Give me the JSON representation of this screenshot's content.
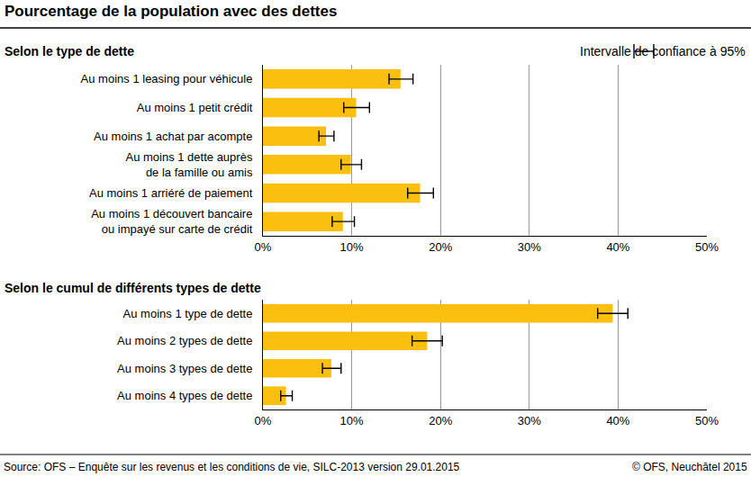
{
  "title": "Pourcentage de la population avec des dettes",
  "legend_label": "Intervalle de confiance à 95%",
  "source": "Source: OFS – Enquête sur les revenus et les conditions de vie, SILC-2013 version 29.01.2015",
  "copyright": "© OFS, Neuchâtel 2015",
  "chart_data": [
    {
      "type": "bar",
      "title": "Selon le type de dette",
      "orientation": "horizontal",
      "grid": true,
      "color": "#fbbf0f",
      "categories": [
        "Au moins 1 leasing pour véhicule",
        "Au moins 1 petit crédit",
        "Au moins 1 achat par acompte",
        "Au moins 1 dette auprès\nde la famille ou amis",
        "Au moins 1 arriéré de paiement",
        "Au moins 1 découvert bancaire\nou impayé sur carte de crédit"
      ],
      "values": [
        15.5,
        10.5,
        7.1,
        9.9,
        17.7,
        9.0
      ],
      "error_minus": [
        1.3,
        1.4,
        0.8,
        1.1,
        1.4,
        1.2
      ],
      "error_plus": [
        1.4,
        1.5,
        0.9,
        1.2,
        1.5,
        1.3
      ],
      "xlim": [
        0,
        50
      ],
      "xticks": [
        {
          "value": 0,
          "label": "0%"
        },
        {
          "value": 10,
          "label": "10%"
        },
        {
          "value": 20,
          "label": "20%"
        },
        {
          "value": 30,
          "label": "30%"
        },
        {
          "value": 40,
          "label": "40%"
        },
        {
          "value": 50,
          "label": "50%"
        }
      ]
    },
    {
      "type": "bar",
      "title": "Selon le cumul de différents types de dette",
      "orientation": "horizontal",
      "grid": true,
      "color": "#fbbf0f",
      "categories": [
        "Au moins 1 type de dette",
        "Au moins 2 types de dette",
        "Au moins 3 types de dette",
        "Au moins 4 types de dette"
      ],
      "values": [
        39.4,
        18.5,
        7.7,
        2.6
      ],
      "error_minus": [
        1.7,
        1.7,
        1.0,
        0.6
      ],
      "error_plus": [
        1.7,
        1.7,
        1.1,
        0.7
      ],
      "xlim": [
        0,
        50
      ],
      "xticks": [
        {
          "value": 0,
          "label": "0%"
        },
        {
          "value": 10,
          "label": "10%"
        },
        {
          "value": 20,
          "label": "20%"
        },
        {
          "value": 30,
          "label": "30%"
        },
        {
          "value": 40,
          "label": "40%"
        },
        {
          "value": 50,
          "label": "50%"
        }
      ]
    }
  ]
}
